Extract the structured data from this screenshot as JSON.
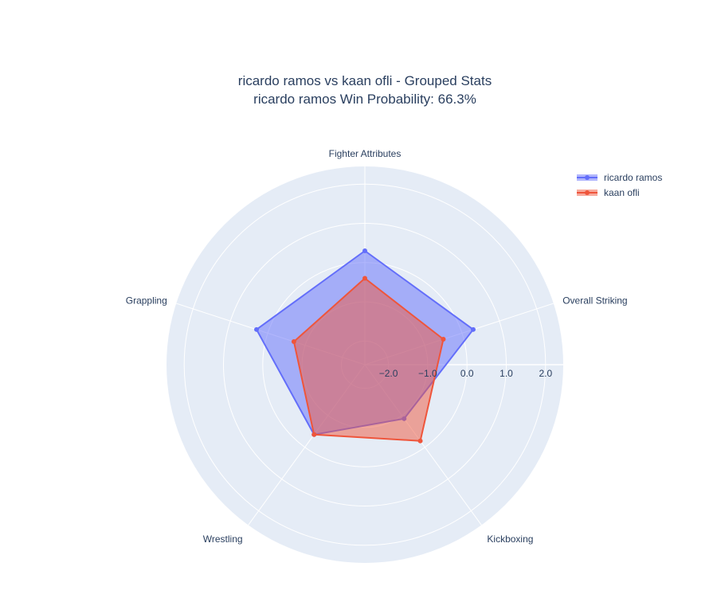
{
  "title": {
    "line1": "ricardo ramos vs kaan ofli - Grouped Stats",
    "line2": "ricardo ramos Win Probability: 66.3%"
  },
  "chart_data": {
    "type": "radar",
    "categories": [
      "Fighter Attributes",
      "Overall Striking",
      "Kickboxing",
      "Wrestling",
      "Grappling"
    ],
    "radial_range": [
      -2.6,
      2.45
    ],
    "radial_ticks": [
      -2,
      -1,
      0,
      1,
      2
    ],
    "radial_tick_labels": [
      "−2.0",
      "−1.0",
      "0.0",
      "1.0",
      "2.0"
    ],
    "series": [
      {
        "name": "ricardo ramos",
        "color": "#636efa",
        "values": [
          0.3,
          0.3,
          -0.9,
          -0.4,
          0.3
        ]
      },
      {
        "name": "kaan ofli",
        "color": "#ef553b",
        "values": [
          -0.4,
          -0.5,
          -0.2,
          -0.4,
          -0.7
        ]
      }
    ],
    "legend_position": "top-right",
    "polar_background": "#e5ecf6",
    "grid": true
  }
}
